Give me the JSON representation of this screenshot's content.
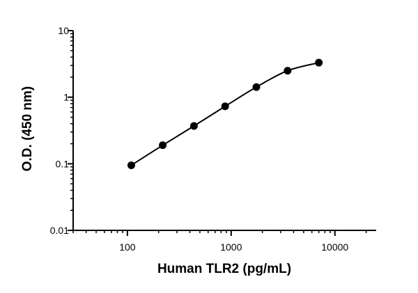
{
  "chart_data": {
    "type": "scatter",
    "title": "",
    "xlabel": "Human TLR2 (pg/mL)",
    "ylabel": "O.D. (450 nm)",
    "x_scale": "log",
    "y_scale": "log",
    "xlim": [
      30,
      25000
    ],
    "ylim": [
      0.01,
      10
    ],
    "x_ticks": [
      100,
      1000,
      10000
    ],
    "x_tick_labels": [
      "100",
      "1000",
      "10000"
    ],
    "y_ticks": [
      0.01,
      0.1,
      1,
      10
    ],
    "y_tick_labels": [
      "0.01",
      "0.1",
      "1",
      "10"
    ],
    "grid": false,
    "legend": "none",
    "point_color": "#000000",
    "line_color": "#000000",
    "series": [
      {
        "x": [
          109,
          219,
          438,
          875,
          1750,
          3500,
          7000
        ],
        "y": [
          0.095,
          0.19,
          0.37,
          0.73,
          1.42,
          2.5,
          3.3
        ],
        "fit": "smooth-curve"
      }
    ]
  }
}
